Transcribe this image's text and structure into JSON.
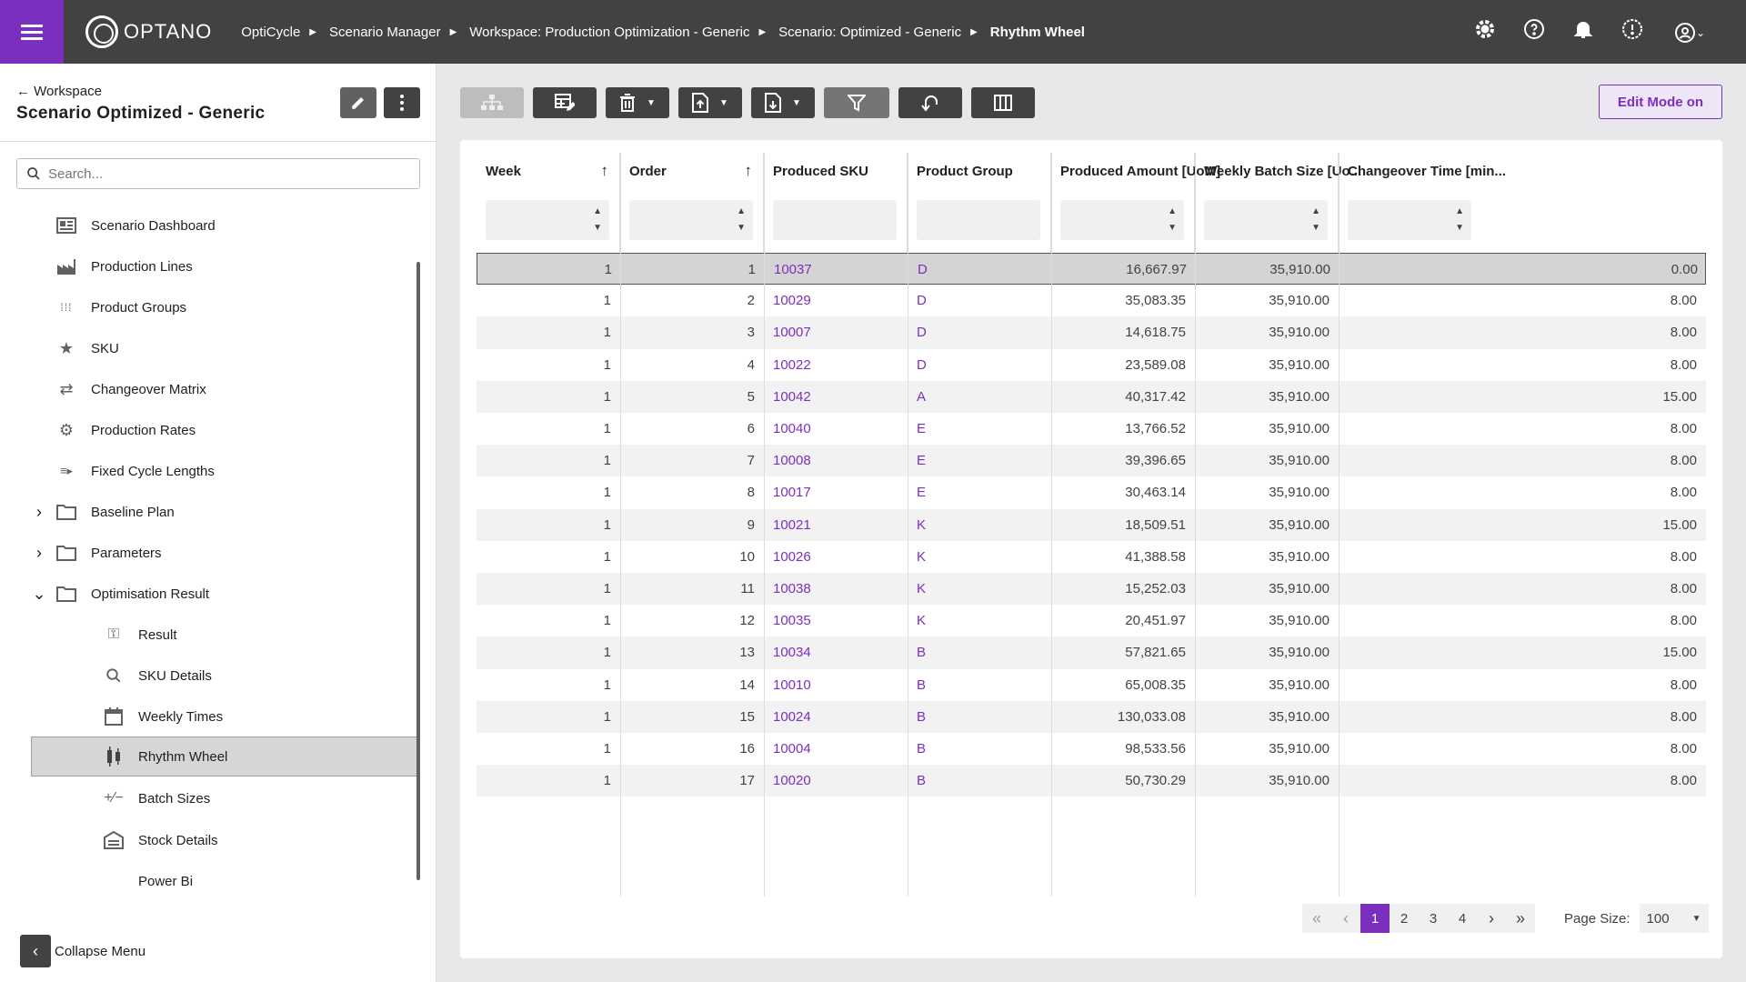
{
  "header": {
    "logo": "OPTANO",
    "breadcrumbs": [
      "OptiCycle",
      "Scenario Manager",
      "Workspace: Production Optimization - Generic",
      "Scenario: Optimized - Generic",
      "Rhythm Wheel"
    ]
  },
  "sidebar": {
    "back_label": "Workspace",
    "scenario_title": "Scenario Optimized - Generic",
    "search_placeholder": "Search...",
    "items": [
      {
        "label": "Scenario Dashboard",
        "icon": "dashboard-icon"
      },
      {
        "label": "Production Lines",
        "icon": "factory-icon"
      },
      {
        "label": "Product Groups",
        "icon": "grid-dots-icon"
      },
      {
        "label": "SKU",
        "icon": "star-icon"
      },
      {
        "label": "Changeover Matrix",
        "icon": "swap-icon"
      },
      {
        "label": "Production Rates",
        "icon": "gauge-icon"
      },
      {
        "label": "Fixed Cycle Lengths",
        "icon": "cycle-icon"
      },
      {
        "label": "Baseline Plan",
        "icon": "folder-icon"
      },
      {
        "label": "Parameters",
        "icon": "folder-icon"
      },
      {
        "label": "Optimisation Result",
        "icon": "folder-icon"
      },
      {
        "label": "Result",
        "icon": "key-icon"
      },
      {
        "label": "SKU Details",
        "icon": "search-icon"
      },
      {
        "label": "Weekly Times",
        "icon": "calendar-icon"
      },
      {
        "label": "Rhythm Wheel",
        "icon": "candle-icon"
      },
      {
        "label": "Batch Sizes",
        "icon": "plus-minus-icon"
      },
      {
        "label": "Stock Details",
        "icon": "warehouse-icon"
      },
      {
        "label": "Power Bi",
        "icon": ""
      }
    ],
    "collapse_label": "Collapse Menu"
  },
  "toolbar": {
    "edit_mode_label": "Edit Mode on"
  },
  "grid": {
    "columns": [
      "Week",
      "Order",
      "Produced SKU",
      "Product Group",
      "Produced Amount [UoM]",
      "Weekly Batch Size [Uo...",
      "Changeover Time [min..."
    ],
    "rows": [
      [
        "1",
        "1",
        "10037",
        "D",
        "16,667.97",
        "35,910.00",
        "0.00"
      ],
      [
        "1",
        "2",
        "10029",
        "D",
        "35,083.35",
        "35,910.00",
        "8.00"
      ],
      [
        "1",
        "3",
        "10007",
        "D",
        "14,618.75",
        "35,910.00",
        "8.00"
      ],
      [
        "1",
        "4",
        "10022",
        "D",
        "23,589.08",
        "35,910.00",
        "8.00"
      ],
      [
        "1",
        "5",
        "10042",
        "A",
        "40,317.42",
        "35,910.00",
        "15.00"
      ],
      [
        "1",
        "6",
        "10040",
        "E",
        "13,766.52",
        "35,910.00",
        "8.00"
      ],
      [
        "1",
        "7",
        "10008",
        "E",
        "39,396.65",
        "35,910.00",
        "8.00"
      ],
      [
        "1",
        "8",
        "10017",
        "E",
        "30,463.14",
        "35,910.00",
        "8.00"
      ],
      [
        "1",
        "9",
        "10021",
        "K",
        "18,509.51",
        "35,910.00",
        "15.00"
      ],
      [
        "1",
        "10",
        "10026",
        "K",
        "41,388.58",
        "35,910.00",
        "8.00"
      ],
      [
        "1",
        "11",
        "10038",
        "K",
        "15,252.03",
        "35,910.00",
        "8.00"
      ],
      [
        "1",
        "12",
        "10035",
        "K",
        "20,451.97",
        "35,910.00",
        "8.00"
      ],
      [
        "1",
        "13",
        "10034",
        "B",
        "57,821.65",
        "35,910.00",
        "15.00"
      ],
      [
        "1",
        "14",
        "10010",
        "B",
        "65,008.35",
        "35,910.00",
        "8.00"
      ],
      [
        "1",
        "15",
        "10024",
        "B",
        "130,033.08",
        "35,910.00",
        "8.00"
      ],
      [
        "1",
        "16",
        "10004",
        "B",
        "98,533.56",
        "35,910.00",
        "8.00"
      ],
      [
        "1",
        "17",
        "10020",
        "B",
        "50,730.29",
        "35,910.00",
        "8.00"
      ]
    ]
  },
  "pagination": {
    "pages": [
      "1",
      "2",
      "3",
      "4"
    ],
    "active_page": "1",
    "page_size_label": "Page Size:",
    "page_size_value": "100"
  },
  "colors": {
    "accent": "#7b2fbf",
    "topbar": "#424242"
  }
}
